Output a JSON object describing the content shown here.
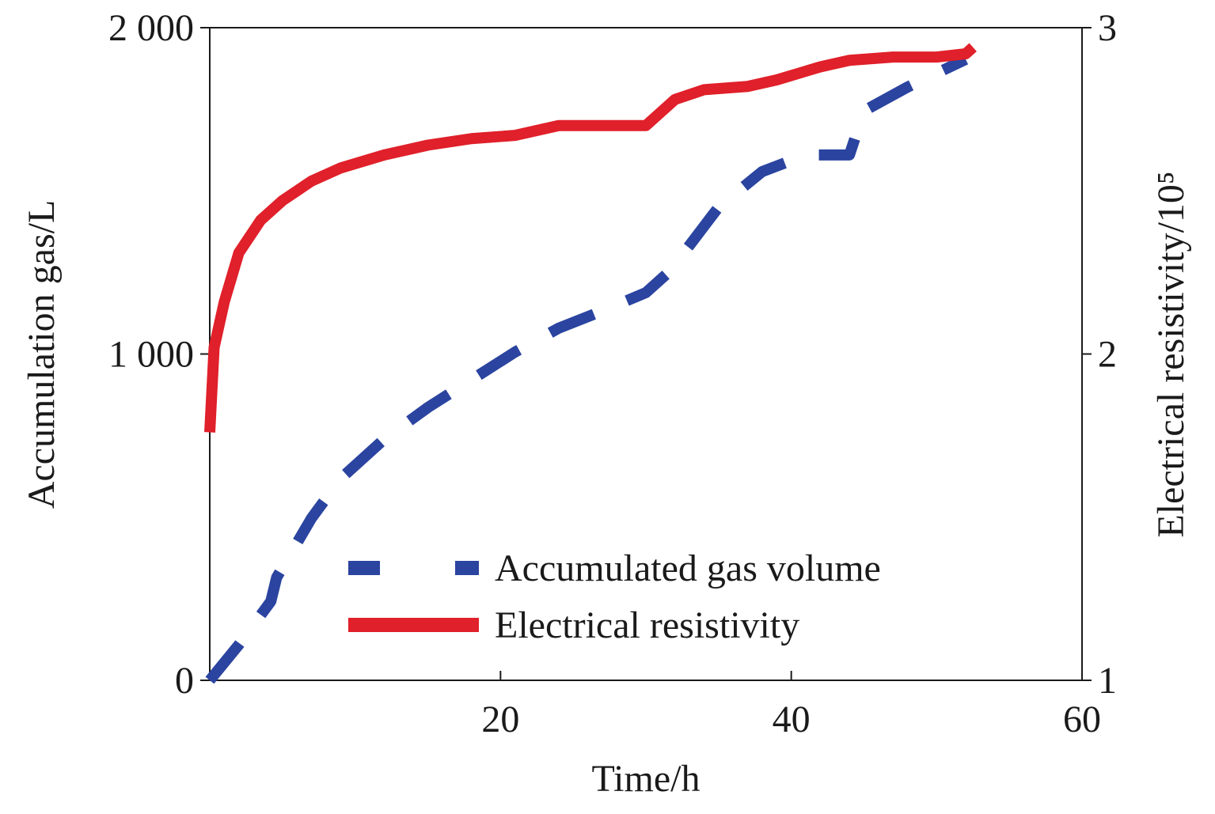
{
  "chart_data": {
    "type": "line",
    "x_label": "Time/h",
    "y_label": "Accumulation gas/L",
    "y2_label": "Electrical resistivity/10⁵",
    "xlim": [
      0,
      60
    ],
    "xticks": [
      20,
      40,
      60
    ],
    "ylim": [
      0,
      2000
    ],
    "yticks": [
      0,
      {
        "value": 1000,
        "label": "1 000"
      },
      {
        "value": 2000,
        "label": "2 000"
      }
    ],
    "y2lim": [
      1,
      3
    ],
    "y2ticks": [
      1,
      2,
      3
    ],
    "legend": "lower center",
    "series": [
      {
        "name": "Accumulated gas volume",
        "color": "#2b44a0",
        "style": "dashed",
        "x": [
          0,
          2,
          4.2,
          4.6,
          7,
          9,
          12,
          15,
          18,
          21,
          24,
          27,
          30,
          31.5,
          33,
          35,
          38,
          41,
          44,
          45,
          48,
          52
        ],
        "values": [
          0,
          109,
          242,
          315,
          497,
          618,
          739,
          836,
          921,
          1006,
          1079,
          1132,
          1188,
          1248,
          1333,
          1450,
          1559,
          1610,
          1610,
          1745,
          1818,
          1903
        ]
      },
      {
        "name": "Electrical resistivity",
        "color": "#e0202a",
        "style": "solid",
        "axis": "y2",
        "x": [
          0,
          0.3,
          1,
          2,
          3.5,
          5,
          7,
          9,
          12,
          15,
          18,
          21,
          24,
          27,
          30,
          32,
          34,
          37,
          39,
          42,
          44,
          47,
          50,
          52,
          52.5
        ],
        "values": [
          1.76,
          2.02,
          2.16,
          2.31,
          2.41,
          2.47,
          2.53,
          2.57,
          2.61,
          2.64,
          2.66,
          2.67,
          2.7,
          2.7,
          2.7,
          2.78,
          2.81,
          2.82,
          2.84,
          2.88,
          2.9,
          2.91,
          2.91,
          2.92,
          2.94
        ]
      }
    ]
  }
}
